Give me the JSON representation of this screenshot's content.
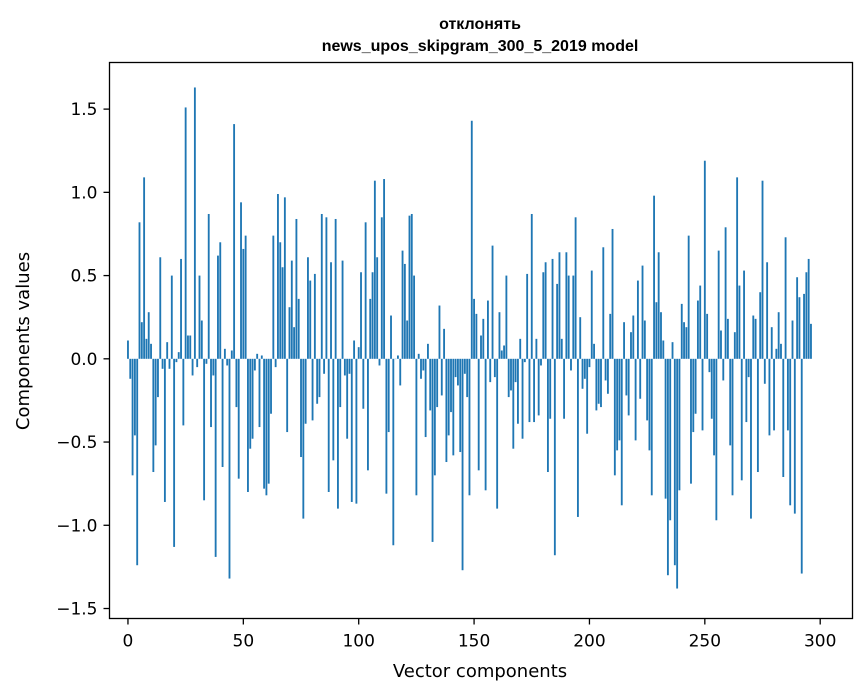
{
  "chart_data": {
    "type": "bar",
    "title": "отклонять",
    "subtitle": "news_upos_skipgram_300_5_2019 model",
    "xlabel": "Vector components",
    "ylabel": "Components values",
    "xlim": [
      -8,
      314
    ],
    "ylim": [
      -1.56,
      1.78
    ],
    "xticks": [
      0,
      50,
      100,
      150,
      200,
      250,
      300
    ],
    "yticks": [
      -1.5,
      -1.0,
      -0.5,
      0.0,
      0.5,
      1.0,
      1.5
    ],
    "ytick_labels": [
      "−1.5",
      "−1.0",
      "−0.5",
      "0.0",
      "0.5",
      "1.0",
      "1.5"
    ],
    "xtick_labels": [
      "0",
      "50",
      "100",
      "150",
      "200",
      "250",
      "300"
    ],
    "bar_color": "#1f77b4",
    "grid": false,
    "x_start": 0,
    "values": [
      0.11,
      -0.12,
      -0.7,
      -0.46,
      -1.24,
      0.82,
      0.22,
      1.09,
      0.12,
      0.28,
      0.09,
      -0.68,
      -0.52,
      -0.23,
      0.61,
      -0.06,
      -0.86,
      0.1,
      -0.06,
      0.5,
      -1.13,
      -0.02,
      0.04,
      0.6,
      -0.4,
      1.51,
      0.14,
      0.14,
      -0.1,
      1.63,
      -0.05,
      0.5,
      0.23,
      -0.85,
      -0.03,
      0.87,
      -0.41,
      -0.1,
      -1.19,
      0.62,
      0.7,
      -0.65,
      0.06,
      -0.04,
      -1.32,
      0.05,
      1.41,
      -0.29,
      -0.72,
      0.94,
      0.66,
      0.74,
      -0.8,
      -0.54,
      -0.48,
      -0.07,
      0.03,
      -0.41,
      0.02,
      -0.78,
      -0.82,
      -0.75,
      -0.33,
      0.74,
      -0.05,
      0.99,
      0.7,
      0.55,
      0.97,
      -0.44,
      0.31,
      0.59,
      0.19,
      0.84,
      0.36,
      -0.59,
      -0.96,
      -0.39,
      0.61,
      0.47,
      -0.37,
      0.51,
      -0.27,
      -0.23,
      0.87,
      -0.09,
      0.85,
      -0.8,
      0.58,
      -0.61,
      0.84,
      -0.9,
      -0.29,
      0.59,
      -0.1,
      -0.48,
      -0.09,
      -0.86,
      0.11,
      -0.87,
      0.07,
      0.52,
      -0.3,
      0.82,
      -0.67,
      0.36,
      0.52,
      1.07,
      0.61,
      -0.04,
      0.85,
      1.08,
      -0.81,
      -0.44,
      0.26,
      -1.12,
      0.0,
      0.02,
      -0.16,
      0.65,
      0.57,
      0.23,
      0.86,
      0.87,
      0.5,
      -0.82,
      0.03,
      -0.12,
      -0.07,
      -0.47,
      0.09,
      -0.31,
      -1.1,
      -0.7,
      -0.29,
      0.32,
      -0.22,
      0.18,
      -0.62,
      -0.46,
      -0.32,
      -0.58,
      -0.11,
      -0.16,
      -0.56,
      -1.27,
      -0.09,
      -0.23,
      -0.82,
      1.43,
      0.36,
      0.27,
      -0.67,
      0.14,
      0.24,
      -0.79,
      0.35,
      -0.14,
      0.68,
      -0.11,
      -0.9,
      0.28,
      0.05,
      0.08,
      0.5,
      -0.23,
      -0.19,
      -0.54,
      -0.14,
      -0.39,
      0.12,
      -0.48,
      -0.02,
      0.51,
      -0.38,
      0.87,
      -0.38,
      0.12,
      -0.34,
      -0.04,
      0.52,
      0.58,
      -0.68,
      -0.36,
      0.6,
      -1.18,
      0.45,
      0.64,
      0.12,
      -0.36,
      0.64,
      0.5,
      -0.07,
      0.5,
      0.85,
      -0.95,
      0.25,
      -0.18,
      -0.12,
      -0.45,
      -0.05,
      0.53,
      0.09,
      -0.31,
      -0.27,
      -0.29,
      0.67,
      -0.13,
      -0.21,
      0.27,
      0.78,
      -0.7,
      -0.55,
      -0.49,
      -0.88,
      0.22,
      -0.22,
      -0.34,
      0.16,
      0.26,
      -0.49,
      0.47,
      -0.24,
      0.56,
      0.23,
      -0.37,
      -0.55,
      -0.82,
      0.98,
      0.34,
      0.64,
      0.28,
      0.11,
      -0.84,
      -1.3,
      -0.97,
      0.1,
      -1.24,
      -1.38,
      -0.79,
      0.33,
      0.22,
      0.19,
      0.74,
      -0.75,
      -0.44,
      -0.33,
      0.35,
      0.44,
      -0.43,
      1.19,
      0.27,
      -0.08,
      -0.36,
      -0.58,
      -0.97,
      0.65,
      0.17,
      -0.13,
      0.79,
      0.24,
      -0.52,
      -0.82,
      0.16,
      1.09,
      0.44,
      -0.73,
      0.53,
      -0.38,
      -0.11,
      -0.96,
      0.26,
      0.24,
      -0.68,
      0.4,
      1.07,
      -0.15,
      0.58,
      -0.46,
      0.19,
      -0.43,
      0.06,
      0.28,
      0.09,
      -0.71,
      0.73,
      -0.43,
      -0.88,
      0.23,
      -0.93,
      0.49,
      0.37,
      -1.29,
      0.39,
      0.52,
      0.6,
      0.21
    ]
  }
}
